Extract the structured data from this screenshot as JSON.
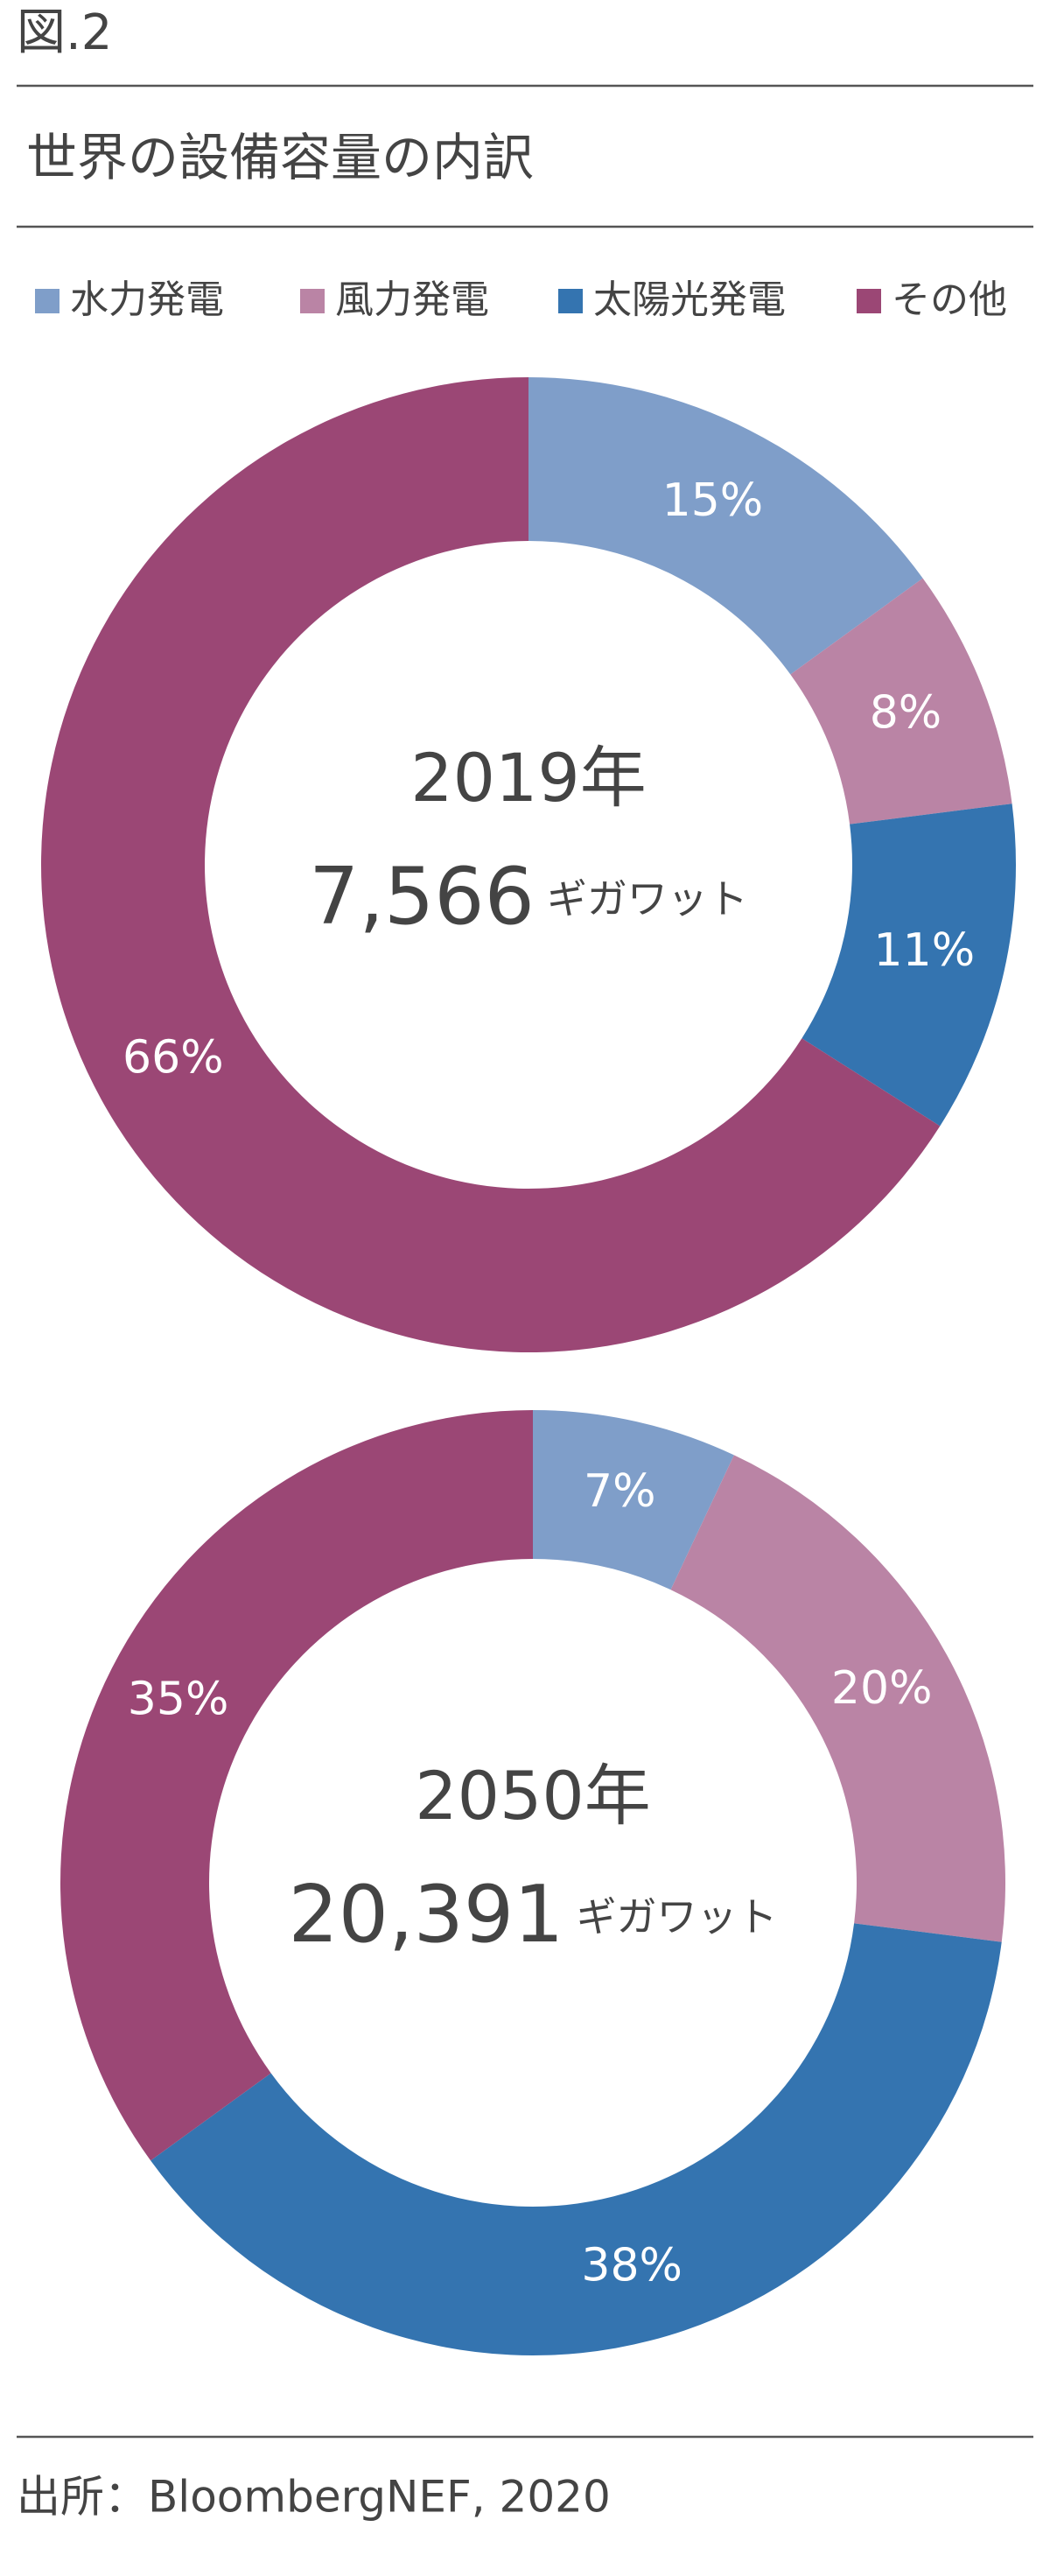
{
  "figure_label": "図.2",
  "title": "世界の設備容量の内訳",
  "legend": {
    "categories": [
      "水力発電",
      "風力発電",
      "太陽光発電",
      "その他"
    ],
    "colors": [
      "#7f9ec9",
      "#ba84a5",
      "#3474b0",
      "#9b4775"
    ]
  },
  "chart_data": [
    {
      "type": "pie",
      "center_title": "2019年",
      "total": "7,566",
      "unit": "ギガワット",
      "values": [
        15,
        8,
        11,
        66
      ],
      "value_labels": [
        "15%",
        "8%",
        "11%",
        "66%"
      ]
    },
    {
      "type": "pie",
      "center_title": "2050年",
      "total": "20,391",
      "unit": "ギガワット",
      "values": [
        7,
        20,
        38,
        35
      ],
      "value_labels": [
        "7%",
        "20%",
        "38%",
        "35%"
      ]
    }
  ],
  "source": "出所：BloombergNEF, 2020"
}
